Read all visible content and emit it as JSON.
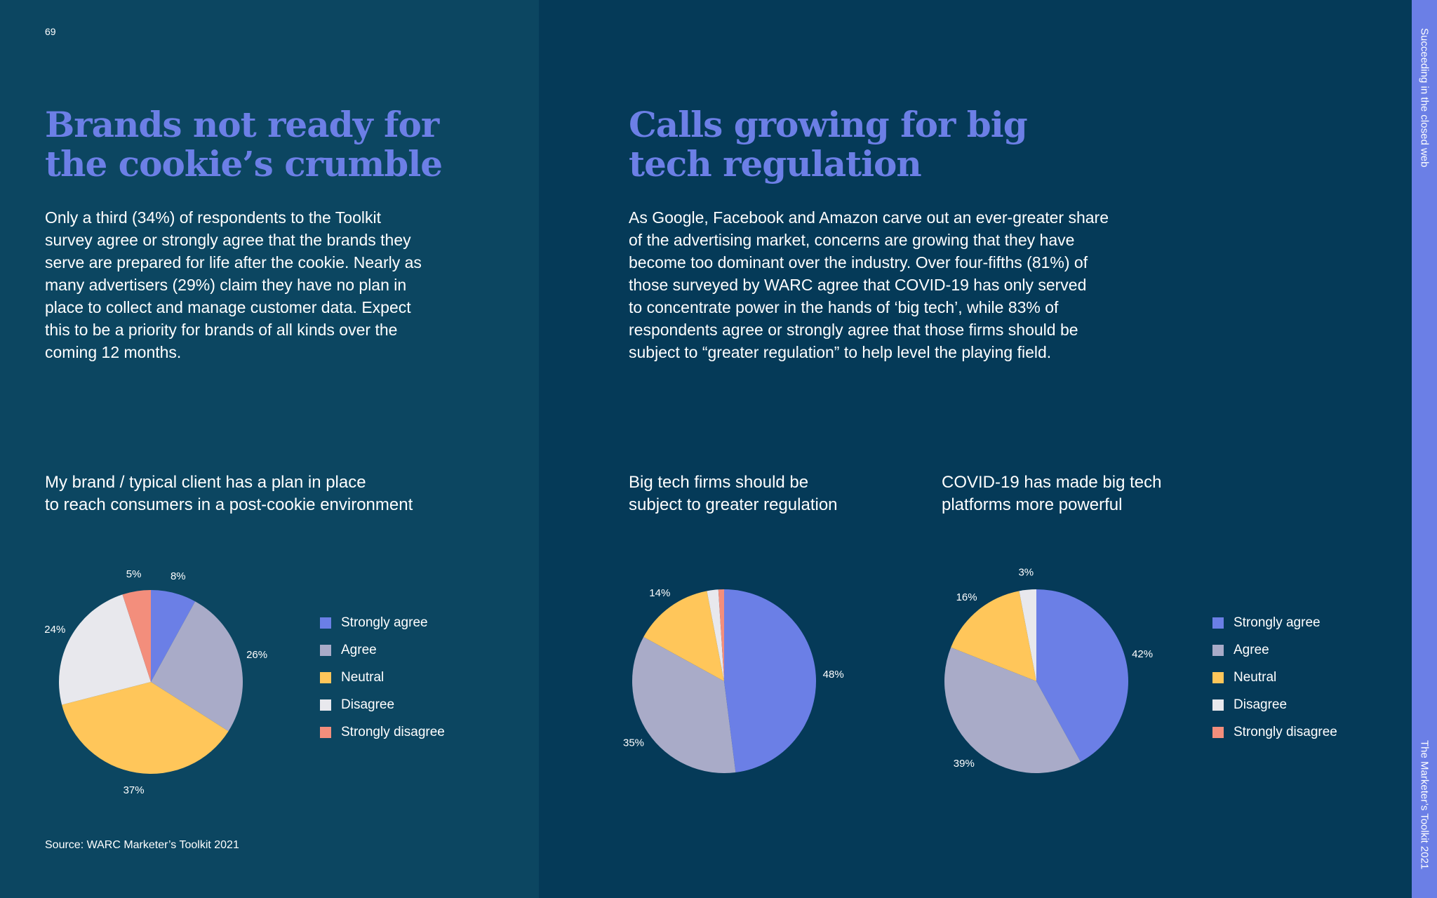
{
  "page_number": "69",
  "side_labels": {
    "top": "Succeeding in the closed web",
    "bottom": "The Marketer’s Toolkit 2021"
  },
  "left": {
    "headline_lines": [
      "Brands not ready for",
      "the cookie’s crumble"
    ],
    "body_lines": [
      "Only a third (34%) of respondents to the Toolkit",
      "survey agree or strongly agree that the brands they",
      "serve are prepared for life after the cookie. Nearly as",
      "many advertisers (29%) claim they have no plan in",
      "place to collect and manage customer data. Expect",
      "this to be a priority for brands of all kinds over the",
      "coming 12 months."
    ]
  },
  "right": {
    "headline_lines": [
      "Calls growing for big",
      "tech regulation"
    ],
    "body_lines": [
      "As Google, Facebook and Amazon carve out an ever-greater share",
      "of the advertising market, concerns are growing that they have",
      "become too dominant over the industry. Over four-fifths (81%) of",
      "those surveyed by WARC agree that COVID-19 has only served",
      "to concentrate power in the hands of ‘big tech’, while 83% of",
      "respondents agree or strongly agree that those firms should be",
      "subject to “greater regulation” to help level the playing field."
    ]
  },
  "legend_colors": {
    "Strongly agree": "#6b7fe6",
    "Agree": "#a9abc8",
    "Neutral": "#ffc65a",
    "Disagree": "#e8e8ed",
    "Strongly disagree": "#f38e7c"
  },
  "legend_left": [
    "Strongly agree",
    "Agree",
    "Neutral",
    "Disagree",
    "Strongly disagree"
  ],
  "legend_right": [
    "Strongly agree",
    "Agree",
    "Neutral",
    "Disagree",
    "Strongly disagree"
  ],
  "chart_data": [
    {
      "type": "pie",
      "title": "My brand / typical client has a plan in place to reach consumers in a post-cookie environment",
      "title_lines": [
        "My brand / typical client has a plan in place",
        "to reach consumers in a post-cookie environment"
      ],
      "categories": [
        "Strongly agree",
        "Agree",
        "Neutral",
        "Disagree",
        "Strongly disagree"
      ],
      "values": [
        8,
        26,
        37,
        24,
        5
      ],
      "labels": [
        "8%",
        "26%",
        "37%",
        "24%",
        "5%"
      ]
    },
    {
      "type": "pie",
      "title": "Big tech firms should be subject to greater regulation",
      "title_lines": [
        "Big tech firms should be",
        "subject to greater regulation"
      ],
      "categories": [
        "Strongly agree",
        "Agree",
        "Neutral",
        "Disagree",
        "Strongly disagree"
      ],
      "values": [
        48,
        35,
        14,
        2,
        1
      ],
      "labels": [
        "48%",
        "35%",
        "14%",
        "",
        ""
      ]
    },
    {
      "type": "pie",
      "title": "COVID-19 has made big tech platforms more powerful",
      "title_lines": [
        "COVID-19 has made big tech",
        "platforms more powerful"
      ],
      "categories": [
        "Strongly agree",
        "Agree",
        "Neutral",
        "Disagree",
        "Strongly disagree"
      ],
      "values": [
        42,
        39,
        16,
        3,
        0
      ],
      "labels": [
        "42%",
        "39%",
        "16%",
        "3%",
        ""
      ]
    }
  ],
  "source": "Source: WARC Marketer’s Toolkit 2021"
}
